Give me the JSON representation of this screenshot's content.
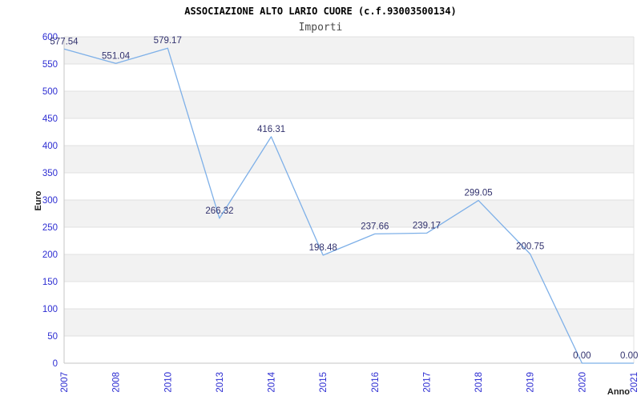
{
  "chart_data": {
    "type": "line",
    "title": "ASSOCIAZIONE ALTO LARIO CUORE (c.f.93003500134)",
    "subtitle": "Importi",
    "xlabel": "Anno",
    "ylabel": "Euro",
    "categories": [
      "2007",
      "2008",
      "2010",
      "2013",
      "2014",
      "2015",
      "2016",
      "2017",
      "2018",
      "2019",
      "2020",
      "2021"
    ],
    "values": [
      577.54,
      551.04,
      579.17,
      266.32,
      416.31,
      198.48,
      237.66,
      239.17,
      299.05,
      200.75,
      0.0,
      0.0
    ],
    "data_labels": [
      "577.54",
      "551.04",
      "579.17",
      "266.32",
      "416.31",
      "198.48",
      "237.66",
      "239.17",
      "299.05",
      "200.75",
      "0.00",
      "0.00"
    ],
    "ylim": [
      0,
      600
    ],
    "ytick_step": 50,
    "ytick_labels": [
      "0",
      "50",
      "100",
      "150",
      "200",
      "250",
      "300",
      "350",
      "400",
      "450",
      "500",
      "550",
      "600"
    ],
    "grid": "horizontal-bands-alternating",
    "legend": "none",
    "colors": {
      "line": "#7eb0e8",
      "tick_label": "#2d2dd2",
      "data_label": "#32326e",
      "band_gray": "#f2f2f2",
      "band_white": "#ffffff",
      "gridline": "#e0e0e0",
      "axis_line": "#c6c6c6",
      "title": "#000000",
      "subtitle": "#4a4a4a",
      "axis_title": "#1c1c1c"
    }
  }
}
